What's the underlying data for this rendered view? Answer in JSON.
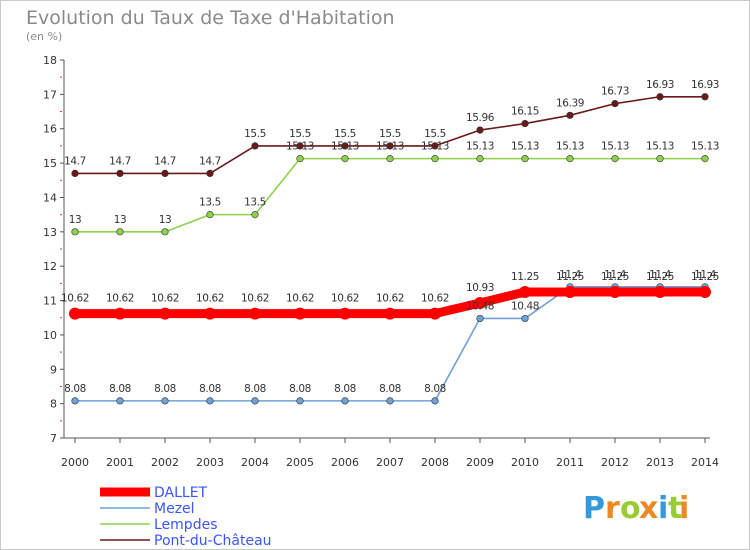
{
  "header": {
    "title": "Evolution du Taux de Taxe d'Habitation",
    "subtitle": "(en %)"
  },
  "logo": {
    "text": "Proxiti"
  },
  "chart_data": {
    "type": "line",
    "title": "Evolution du Taux de Taxe d'Habitation",
    "subtitle": "(en %)",
    "xlabel": "",
    "ylabel": "",
    "ylim": [
      7,
      18
    ],
    "yticks": [
      7,
      8,
      9,
      10,
      11,
      12,
      13,
      14,
      15,
      16,
      17,
      18
    ],
    "x": [
      "2000",
      "2001",
      "2002",
      "2003",
      "2004",
      "2005",
      "2006",
      "2007",
      "2008",
      "2009",
      "2010",
      "2011",
      "2012",
      "2013",
      "2014"
    ],
    "grid": false,
    "legend_position": "bottom-left",
    "series": [
      {
        "name": "Pont-du-Château",
        "color": "#6b1a1a",
        "values": [
          14.7,
          14.7,
          14.7,
          14.7,
          15.5,
          15.5,
          15.5,
          15.5,
          15.5,
          15.96,
          16.15,
          16.39,
          16.73,
          16.93,
          16.93
        ],
        "labels": [
          "14.7",
          "14.7",
          "14.7",
          "14.7",
          "15.5",
          "15.5",
          "15.5",
          "15.5",
          "15.5",
          "15.96",
          "16.15",
          "16.39",
          "16.73",
          "16.93",
          "16.93"
        ]
      },
      {
        "name": "Lempdes",
        "color": "#8fd14f",
        "values": [
          13,
          13,
          13,
          13.5,
          13.5,
          15.13,
          15.13,
          15.13,
          15.13,
          15.13,
          15.13,
          15.13,
          15.13,
          15.13,
          15.13
        ],
        "labels": [
          "13",
          "13",
          "13",
          "13.5",
          "13.5",
          "15.13",
          "15.13",
          "15.13",
          "15.13",
          "15.13",
          "15.13",
          "15.13",
          "15.13",
          "15.13",
          "15.13"
        ]
      },
      {
        "name": "Mezel",
        "color": "#6fa0d6",
        "values": [
          8.08,
          8.08,
          8.08,
          8.08,
          8.08,
          8.08,
          8.08,
          8.08,
          8.08,
          10.48,
          10.48,
          11.4,
          11.4,
          11.4,
          11.4
        ],
        "labels": [
          "8.08",
          "8.08",
          "8.08",
          "8.08",
          "8.08",
          "8.08",
          "8.08",
          "8.08",
          "8.08",
          "10.48",
          "10.48",
          "11.4",
          "11.4",
          "11.4",
          "11.4"
        ]
      },
      {
        "name": "DALLET",
        "color": "#ff0000",
        "values": [
          10.62,
          10.62,
          10.62,
          10.62,
          10.62,
          10.62,
          10.62,
          10.62,
          10.62,
          10.93,
          11.25,
          11.25,
          11.25,
          11.25,
          11.25
        ],
        "labels": [
          "10.62",
          "10.62",
          "10.62",
          "10.62",
          "10.62",
          "10.62",
          "10.62",
          "10.62",
          "10.62",
          "10.93",
          "11.25",
          "11.25",
          "11.25",
          "11.25",
          "11.25"
        ]
      }
    ],
    "legend": [
      "DALLET",
      "Mezel",
      "Lempdes",
      "Pont-du-Château"
    ]
  }
}
